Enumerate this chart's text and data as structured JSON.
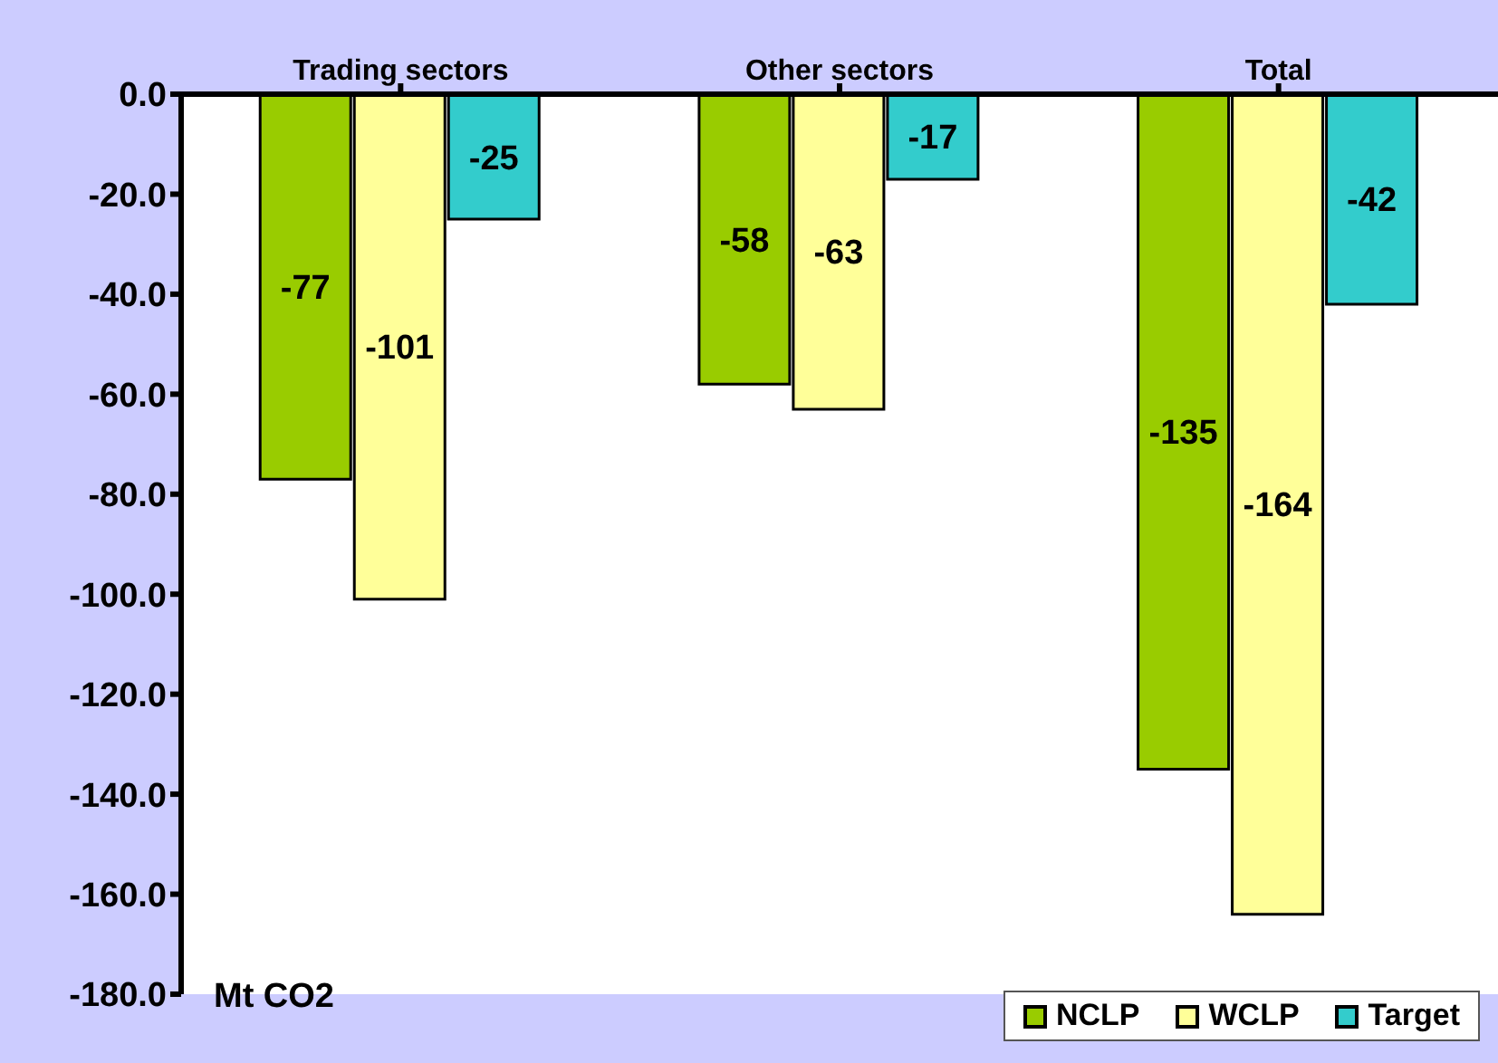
{
  "chart_data": {
    "type": "bar",
    "categories": [
      "Trading sectors",
      "Other sectors",
      "Total"
    ],
    "series": [
      {
        "name": "NCLP",
        "color": "#99cc00",
        "values": [
          -77,
          -58,
          -135
        ]
      },
      {
        "name": "WCLP",
        "color": "#ffff99",
        "values": [
          -101,
          -63,
          -164
        ]
      },
      {
        "name": "Target",
        "color": "#33cccc",
        "values": [
          -25,
          -17,
          -42
        ]
      }
    ],
    "ylim": [
      -180,
      0
    ],
    "yticks": [
      {
        "value": 0,
        "label": "0.0"
      },
      {
        "value": -20,
        "label": "-20.0"
      },
      {
        "value": -40,
        "label": "-40.0"
      },
      {
        "value": -60,
        "label": "-60.0"
      },
      {
        "value": -80,
        "label": "-80.0"
      },
      {
        "value": -100,
        "label": "-100.0"
      },
      {
        "value": -120,
        "label": "-120.0"
      },
      {
        "value": -140,
        "label": "-140.0"
      },
      {
        "value": -160,
        "label": "-160.0"
      },
      {
        "value": -180,
        "label": "-180.0"
      }
    ],
    "annotations": [
      "Mt CO2"
    ],
    "data_labels": true,
    "legend": "bottom right",
    "grid": false
  }
}
